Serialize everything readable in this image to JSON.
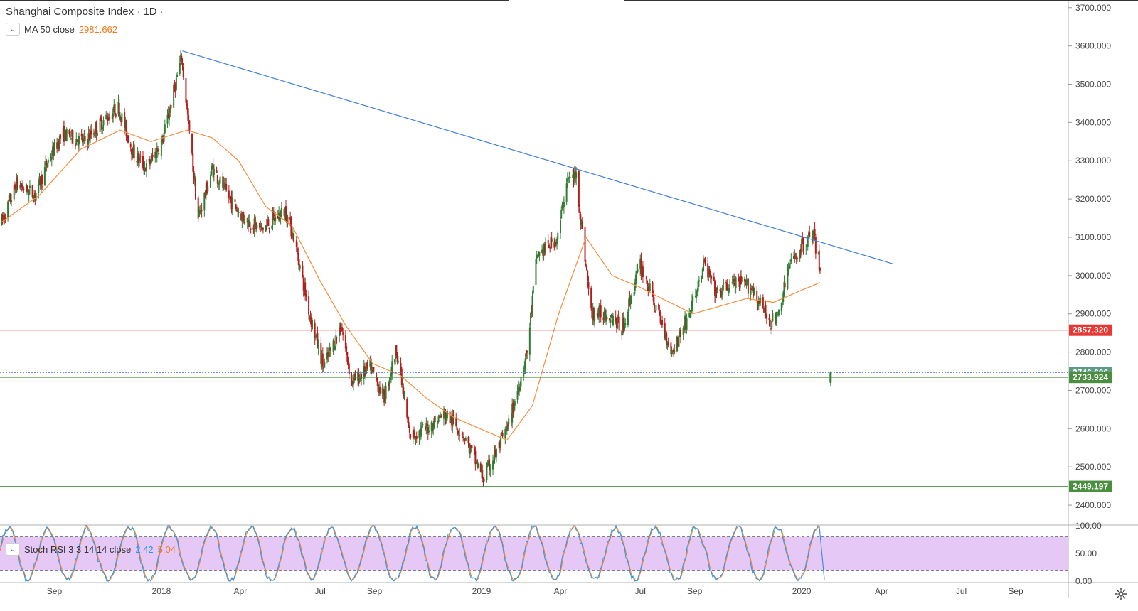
{
  "header": {
    "symbol": "Shanghai Composite Index",
    "separator": "·",
    "interval": "1D",
    "interval_suffix": "·"
  },
  "ma_legend": {
    "label": "MA 50 close",
    "value": "2981.662",
    "color": "#f07b1d"
  },
  "rsi_legend": {
    "label": "Stoch RSI 3 3 14 14 close",
    "k_value": "2.42",
    "d_value": "5.04",
    "k_color": "#2196f3",
    "d_color": "#f07b1d"
  },
  "colors": {
    "up": "#2e7d32",
    "down": "#b71c1c",
    "trendline": "#3f7fd8",
    "resistance": "#e53935",
    "support": "#4a8f3f",
    "current": "#5b7fe0",
    "rsi_band": "#e5c8f5",
    "ma": "#f58e3f"
  },
  "chart_data": {
    "type": "candlestick",
    "xlabel": "",
    "ylabel": "",
    "price_range": [
      2350,
      3720
    ],
    "price_ticks": [
      "2400.000",
      "2500.000",
      "2600.000",
      "2700.000",
      "2800.000",
      "2900.000",
      "3000.000",
      "3100.000",
      "3200.000",
      "3300.000",
      "3400.000",
      "3500.000",
      "3600.000",
      "3700.000"
    ],
    "time_axis": {
      "labels": [
        "Sep",
        "2018",
        "Apr",
        "Jul",
        "Sep",
        "2019",
        "Apr",
        "Jul",
        "Sep",
        "2020",
        "Apr",
        "Jul",
        "Sep"
      ],
      "dates": [
        "2017-09-01",
        "2018-01-01",
        "2018-04-01",
        "2018-07-01",
        "2018-09-01",
        "2019-01-01",
        "2019-04-01",
        "2019-07-01",
        "2019-09-01",
        "2020-01-01",
        "2020-04-01",
        "2020-07-01",
        "2020-09-01"
      ],
      "start": "2017-07-01",
      "end": "2020-10-31"
    },
    "price_path": [
      [
        "2017-07-03",
        3140
      ],
      [
        "2017-07-20",
        3240
      ],
      [
        "2017-08-10",
        3210
      ],
      [
        "2017-08-25",
        3300
      ],
      [
        "2017-09-10",
        3370
      ],
      [
        "2017-10-05",
        3350
      ],
      [
        "2017-10-25",
        3400
      ],
      [
        "2017-11-13",
        3440
      ],
      [
        "2017-11-30",
        3320
      ],
      [
        "2017-12-15",
        3280
      ],
      [
        "2018-01-02",
        3350
      ],
      [
        "2018-01-24",
        3570
      ],
      [
        "2018-02-12",
        3150
      ],
      [
        "2018-02-28",
        3280
      ],
      [
        "2018-03-20",
        3200
      ],
      [
        "2018-04-05",
        3150
      ],
      [
        "2018-04-25",
        3120
      ],
      [
        "2018-05-22",
        3170
      ],
      [
        "2018-06-01",
        3100
      ],
      [
        "2018-06-19",
        2900
      ],
      [
        "2018-07-05",
        2760
      ],
      [
        "2018-07-25",
        2870
      ],
      [
        "2018-08-06",
        2720
      ],
      [
        "2018-08-27",
        2760
      ],
      [
        "2018-09-12",
        2680
      ],
      [
        "2018-09-26",
        2810
      ],
      [
        "2018-10-11",
        2580
      ],
      [
        "2018-10-30",
        2600
      ],
      [
        "2018-11-20",
        2640
      ],
      [
        "2018-12-10",
        2590
      ],
      [
        "2019-01-03",
        2470
      ],
      [
        "2019-01-31",
        2600
      ],
      [
        "2019-02-22",
        2800
      ],
      [
        "2019-03-05",
        3050
      ],
      [
        "2019-03-29",
        3100
      ],
      [
        "2019-04-08",
        3250
      ],
      [
        "2019-04-19",
        3260
      ],
      [
        "2019-05-06",
        2900
      ],
      [
        "2019-05-28",
        2900
      ],
      [
        "2019-06-10",
        2860
      ],
      [
        "2019-07-01",
        3030
      ],
      [
        "2019-07-18",
        2920
      ],
      [
        "2019-08-06",
        2800
      ],
      [
        "2019-08-26",
        2900
      ],
      [
        "2019-09-12",
        3030
      ],
      [
        "2019-09-26",
        2950
      ],
      [
        "2019-10-15",
        2980
      ],
      [
        "2019-11-05",
        2970
      ],
      [
        "2019-11-25",
        2880
      ],
      [
        "2019-12-05",
        2890
      ],
      [
        "2019-12-17",
        3020
      ],
      [
        "2020-01-02",
        3080
      ],
      [
        "2020-01-14",
        3110
      ],
      [
        "2020-01-22",
        3020
      ]
    ],
    "ma_path": [
      [
        "2017-07-03",
        3140
      ],
      [
        "2017-08-15",
        3210
      ],
      [
        "2017-10-01",
        3330
      ],
      [
        "2017-11-15",
        3380
      ],
      [
        "2017-12-20",
        3350
      ],
      [
        "2018-01-30",
        3380
      ],
      [
        "2018-02-28",
        3360
      ],
      [
        "2018-03-30",
        3300
      ],
      [
        "2018-04-30",
        3180
      ],
      [
        "2018-05-30",
        3130
      ],
      [
        "2018-06-30",
        2990
      ],
      [
        "2018-07-30",
        2870
      ],
      [
        "2018-08-30",
        2770
      ],
      [
        "2018-09-30",
        2740
      ],
      [
        "2018-10-30",
        2680
      ],
      [
        "2018-11-30",
        2630
      ],
      [
        "2018-12-30",
        2600
      ],
      [
        "2019-01-30",
        2570
      ],
      [
        "2019-02-28",
        2660
      ],
      [
        "2019-03-30",
        2900
      ],
      [
        "2019-04-30",
        3100
      ],
      [
        "2019-05-30",
        3000
      ],
      [
        "2019-06-30",
        2970
      ],
      [
        "2019-07-30",
        2935
      ],
      [
        "2019-08-30",
        2900
      ],
      [
        "2019-09-30",
        2920
      ],
      [
        "2019-10-30",
        2940
      ],
      [
        "2019-11-30",
        2930
      ],
      [
        "2019-12-30",
        2960
      ],
      [
        "2020-01-22",
        2981.662
      ]
    ],
    "last_candle": {
      "date": "2020-02-03",
      "open": 2746.606,
      "high": 2750,
      "low": 2710,
      "close": 2720
    },
    "trendline": {
      "from": [
        "2018-01-25",
        3587
      ],
      "to": [
        "2020-04-15",
        3030
      ]
    },
    "levels": [
      {
        "name": "resistance",
        "value": 2857.32,
        "label": "2857.320",
        "style": "solid",
        "color": "#e53935"
      },
      {
        "name": "current",
        "value": 2746.606,
        "label": "2746.606",
        "style": "dotted",
        "color": "#5b7fe0"
      },
      {
        "name": "support-1",
        "value": 2733.924,
        "label": "2733.924",
        "style": "solid",
        "color": "#4a8f3f"
      },
      {
        "name": "support-2",
        "value": 2449.197,
        "label": "2449.197",
        "style": "solid",
        "color": "#4a8f3f"
      }
    ],
    "stoch_rsi": {
      "range": [
        0,
        100
      ],
      "ticks": [
        "100.00",
        "50.00",
        "0.00"
      ],
      "band": [
        20,
        80
      ],
      "k_last": 2.42,
      "d_last": 5.04
    }
  }
}
